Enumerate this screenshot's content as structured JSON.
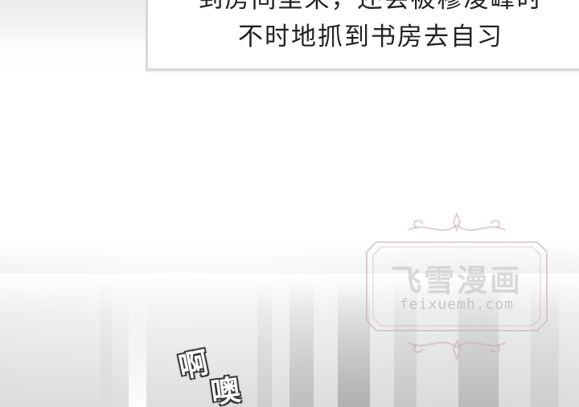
{
  "caption": {
    "line1": "到房间里来，还会被穆凌峰时",
    "line2": "不时地抓到书房去自习"
  },
  "watermark": {
    "title": "飞雪漫画",
    "url": "feixuemh.com"
  },
  "sfx": {
    "char1": "啊",
    "char2": "噢"
  }
}
